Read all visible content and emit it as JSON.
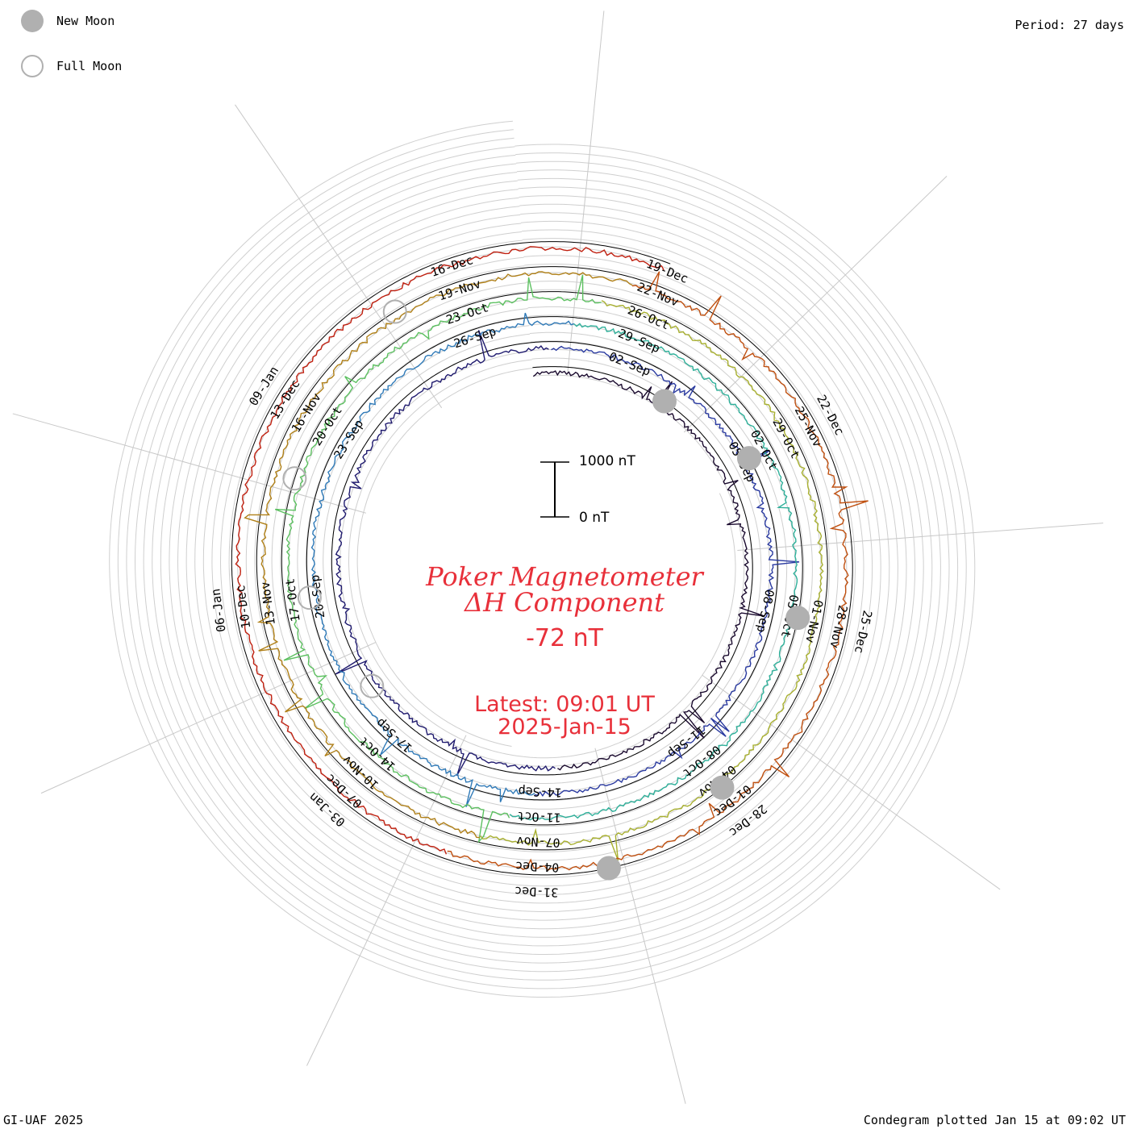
{
  "legend": {
    "new_moon": "New Moon",
    "full_moon": "Full Moon",
    "moon_color": "#b0b0b0"
  },
  "header": {
    "period": "Period: 27 days"
  },
  "footer": {
    "credit": "GI-UAF 2025",
    "plotted": "Condegram plotted Jan 15 at 09:02 UT"
  },
  "center": {
    "title_line1": "Poker Magnetometer",
    "title_line2": "ΔH Component",
    "current_value": "-72 nT",
    "latest_line1": "Latest: 09:01 UT",
    "latest_line2": "2025-Jan-15",
    "text_color": "#e8303a"
  },
  "scale_bar": {
    "top_label": "1000 nT",
    "bottom_label": "0 nT"
  },
  "chart_data": {
    "type": "line",
    "form": "condegram spiral (polar time series, one turn per period)",
    "period_days": 27,
    "start_date": "2024-08-31",
    "end_date": "2025-01-15",
    "units": "nT",
    "scale_bar_nT": 1000,
    "grid": true,
    "colors": [
      "#1a0a2e",
      "#1f1a6e",
      "#2a3aa0",
      "#2f7ab8",
      "#2fb09a",
      "#5cc060",
      "#a8b030",
      "#b08018",
      "#c05010",
      "#c02010"
    ],
    "date_labels": [
      [
        "02-Sep",
        "05-Sep",
        "08-Sep",
        "11-Sep",
        "14-Sep",
        "17-Sep",
        "20-Sep",
        "23-Sep",
        "26-Sep"
      ],
      [
        "29-Sep",
        "02-Oct",
        "05-Oct",
        "08-Oct",
        "11-Oct",
        "14-Oct",
        "17-Oct",
        "20-Oct",
        "23-Oct"
      ],
      [
        "26-Oct",
        "29-Oct",
        "01-Nov",
        "04-Nov",
        "07-Nov",
        "10-Nov",
        "13-Nov",
        "16-Nov",
        "19-Nov"
      ],
      [
        "22-Nov",
        "25-Nov",
        "28-Nov",
        "01-Dec",
        "04-Dec",
        "07-Dec",
        "10-Dec",
        "13-Dec",
        "16-Dec"
      ],
      [
        "19-Dec",
        "22-Dec",
        "25-Dec",
        "28-Dec",
        "31-Dec",
        "03-Jan",
        "06-Jan",
        "09-Jan"
      ]
    ],
    "new_moons": [
      "2024-09-03",
      "2024-10-02",
      "2024-11-01",
      "2024-12-01",
      "2024-12-30"
    ],
    "full_moons": [
      "2024-09-18",
      "2024-10-17",
      "2024-11-15",
      "2024-12-15"
    ]
  }
}
